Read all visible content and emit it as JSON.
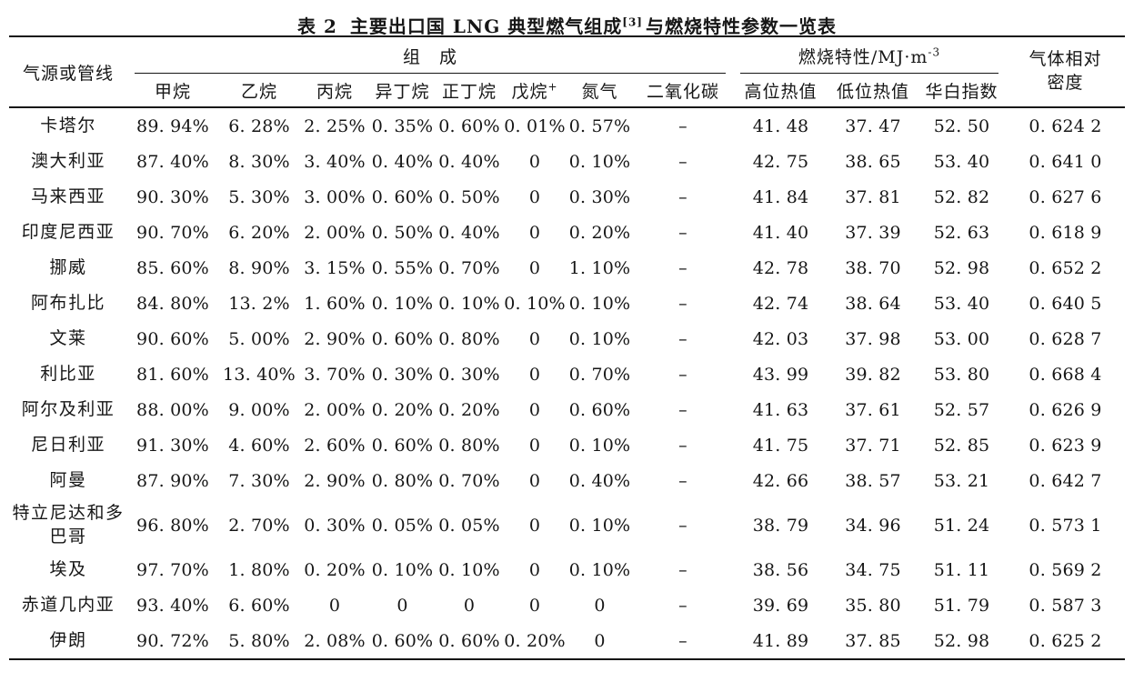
{
  "page": {
    "title": {
      "label": "表 2",
      "main": "主要出口国 LNG 典型燃气组成",
      "ref": "[3]",
      "suffix": "与燃烧特性参数一览表"
    },
    "table": {
      "corner_header": "气源或管线",
      "groups": {
        "composition": "组　成",
        "combustion": {
          "text": "燃烧特性/MJ·m",
          "sup": "-3"
        },
        "density": {
          "line1": "气体相对",
          "line2": "密度"
        }
      },
      "sub_headers": [
        {
          "text": "甲烷",
          "sup": ""
        },
        {
          "text": "乙烷",
          "sup": ""
        },
        {
          "text": "丙烷",
          "sup": ""
        },
        {
          "text": "异丁烷",
          "sup": ""
        },
        {
          "text": "正丁烷",
          "sup": ""
        },
        {
          "text": "戊烷",
          "sup": "+"
        },
        {
          "text": "氮气",
          "sup": ""
        },
        {
          "text": "二氧化碳",
          "sup": ""
        },
        {
          "text": "高位热值",
          "sup": ""
        },
        {
          "text": "低位热值",
          "sup": ""
        },
        {
          "text": "华白指数",
          "sup": ""
        }
      ],
      "rows": [
        {
          "name": "卡塔尔",
          "values": [
            "89. 94%",
            "6. 28%",
            "2. 25%",
            "0. 35%",
            "0. 60%",
            "0. 01%",
            "0. 57%",
            "–",
            "41. 48",
            "37. 47",
            "52. 50",
            "0. 624 2"
          ]
        },
        {
          "name": "澳大利亚",
          "values": [
            "87. 40%",
            "8. 30%",
            "3. 40%",
            "0. 40%",
            "0. 40%",
            "0",
            "0. 10%",
            "–",
            "42. 75",
            "38. 65",
            "53. 40",
            "0. 641 0"
          ]
        },
        {
          "name": "马来西亚",
          "values": [
            "90. 30%",
            "5. 30%",
            "3. 00%",
            "0. 60%",
            "0. 50%",
            "0",
            "0. 30%",
            "–",
            "41. 84",
            "37. 81",
            "52. 82",
            "0. 627 6"
          ]
        },
        {
          "name": "印度尼西亚",
          "values": [
            "90. 70%",
            "6. 20%",
            "2. 00%",
            "0. 50%",
            "0. 40%",
            "0",
            "0. 20%",
            "–",
            "41. 40",
            "37. 39",
            "52. 63",
            "0. 618 9"
          ]
        },
        {
          "name": "挪威",
          "values": [
            "85. 60%",
            "8. 90%",
            "3. 15%",
            "0. 55%",
            "0. 70%",
            "0",
            "1. 10%",
            "–",
            "42. 78",
            "38. 70",
            "52. 98",
            "0. 652 2"
          ]
        },
        {
          "name": "阿布扎比",
          "values": [
            "84. 80%",
            "13. 2%",
            "1. 60%",
            "0. 10%",
            "0. 10%",
            "0. 10%",
            "0. 10%",
            "–",
            "42. 74",
            "38. 64",
            "53. 40",
            "0. 640 5"
          ]
        },
        {
          "name": "文莱",
          "values": [
            "90. 60%",
            "5. 00%",
            "2. 90%",
            "0. 60%",
            "0. 80%",
            "0",
            "0. 10%",
            "–",
            "42. 03",
            "37. 98",
            "53. 00",
            "0. 628 7"
          ]
        },
        {
          "name": "利比亚",
          "values": [
            "81. 60%",
            "13. 40%",
            "3. 70%",
            "0. 30%",
            "0. 30%",
            "0",
            "0. 70%",
            "–",
            "43. 99",
            "39. 82",
            "53. 80",
            "0. 668 4"
          ]
        },
        {
          "name": "阿尔及利亚",
          "values": [
            "88. 00%",
            "9. 00%",
            "2. 00%",
            "0. 20%",
            "0. 20%",
            "0",
            "0. 60%",
            "–",
            "41. 63",
            "37. 61",
            "52. 57",
            "0. 626 9"
          ]
        },
        {
          "name": "尼日利亚",
          "values": [
            "91. 30%",
            "4. 60%",
            "2. 60%",
            "0. 60%",
            "0. 80%",
            "0",
            "0. 10%",
            "–",
            "41. 75",
            "37. 71",
            "52. 85",
            "0. 623 9"
          ]
        },
        {
          "name": "阿曼",
          "values": [
            "87. 90%",
            "7. 30%",
            "2. 90%",
            "0. 80%",
            "0. 70%",
            "0",
            "0. 40%",
            "–",
            "42. 66",
            "38. 57",
            "53. 21",
            "0. 642 7"
          ]
        },
        {
          "name": "特立尼达和多巴哥",
          "values": [
            "96. 80%",
            "2. 70%",
            "0. 30%",
            "0. 05%",
            "0. 05%",
            "0",
            "0. 10%",
            "–",
            "38. 79",
            "34. 96",
            "51. 24",
            "0. 573 1"
          ]
        },
        {
          "name": "埃及",
          "values": [
            "97. 70%",
            "1. 80%",
            "0. 20%",
            "0. 10%",
            "0. 10%",
            "0",
            "0. 10%",
            "–",
            "38. 56",
            "34. 75",
            "51. 11",
            "0. 569 2"
          ]
        },
        {
          "name": "赤道几内亚",
          "values": [
            "93. 40%",
            "6. 60%",
            "0",
            "0",
            "0",
            "0",
            "0",
            "–",
            "39. 69",
            "35. 80",
            "51. 79",
            "0. 587 3"
          ]
        },
        {
          "name": "伊朗",
          "values": [
            "90. 72%",
            "5. 80%",
            "2. 08%",
            "0. 60%",
            "0. 60%",
            "0. 20%",
            "0",
            "–",
            "41. 89",
            "37. 85",
            "52. 98",
            "0. 625 2"
          ]
        }
      ]
    }
  }
}
